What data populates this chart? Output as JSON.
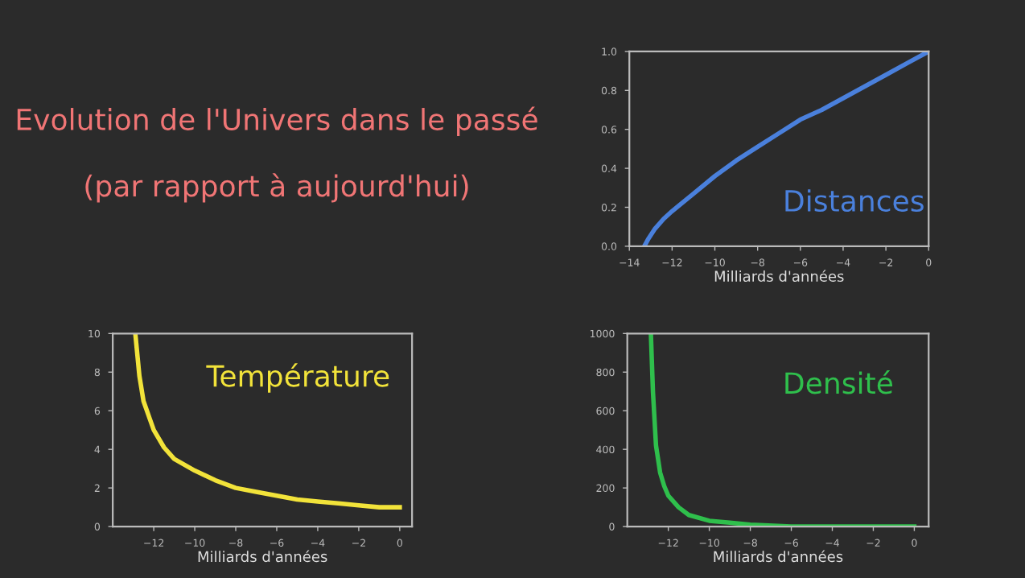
{
  "chart_data": [
    {
      "type": "other",
      "title": "Evolution de l'Univers dans le passé",
      "subtitle": "(par rapport à aujourd'hui)"
    },
    {
      "type": "line",
      "xlabel": "Milliards d'années",
      "annotations": [
        "Distances"
      ],
      "xlim": [
        -14,
        0
      ],
      "xticks": [
        {
          "value": -14,
          "label": "−14"
        },
        {
          "value": -12,
          "label": "−12"
        },
        {
          "value": -10,
          "label": "−10"
        },
        {
          "value": -8,
          "label": "−8"
        },
        {
          "value": -6,
          "label": "−6"
        },
        {
          "value": -4,
          "label": "−4"
        },
        {
          "value": -2,
          "label": "−2"
        },
        0
      ],
      "ylim": [
        0,
        1
      ],
      "yticks": [
        {
          "value": 0,
          "label": "0.0"
        },
        0.2,
        0.4,
        0.6,
        0.8,
        {
          "value": 1,
          "label": "1.0"
        }
      ],
      "grid": false,
      "series": [
        {
          "color": "#4a80dc",
          "x": [
            -13.3,
            -13.1,
            -12.8,
            -12.4,
            -12,
            -11,
            -10,
            -9,
            -8,
            -7,
            -6,
            -5,
            -4,
            -3,
            -2,
            -1,
            0
          ],
          "values": [
            0,
            0.04,
            0.09,
            0.14,
            0.18,
            0.27,
            0.36,
            0.44,
            0.51,
            0.58,
            0.65,
            0.7,
            0.76,
            0.82,
            0.88,
            0.94,
            1
          ]
        }
      ]
    },
    {
      "type": "line",
      "xlabel": "Milliards d'années",
      "annotations": [
        "Température"
      ],
      "xlim": [
        -14,
        0.6
      ],
      "xticks": [
        {
          "value": -12,
          "label": "−12"
        },
        {
          "value": -10,
          "label": "−10"
        },
        {
          "value": -8,
          "label": "−8"
        },
        {
          "value": -6,
          "label": "−6"
        },
        {
          "value": -4,
          "label": "−4"
        },
        {
          "value": -2,
          "label": "−2"
        },
        0
      ],
      "ylim": [
        0,
        10
      ],
      "yticks": [
        0,
        2,
        4,
        6,
        8,
        10
      ],
      "grid": false,
      "series": [
        {
          "color": "#f2e33a",
          "x": [
            -12.9,
            -12.7,
            -12.5,
            -12.2,
            -12,
            -11.5,
            -11,
            -10,
            -9,
            -8,
            -7,
            -6,
            -5,
            -4,
            -3,
            -2,
            -1,
            0
          ],
          "values": [
            10,
            7.8,
            6.5,
            5.6,
            5.0,
            4.1,
            3.5,
            2.9,
            2.4,
            2.0,
            1.8,
            1.6,
            1.4,
            1.3,
            1.2,
            1.1,
            1.0,
            1.0
          ]
        }
      ]
    },
    {
      "type": "line",
      "xlabel": "Milliards d'années",
      "annotations": [
        "Densité"
      ],
      "xlim": [
        -14,
        0.7
      ],
      "xticks": [
        {
          "value": -12,
          "label": "−12"
        },
        {
          "value": -10,
          "label": "−10"
        },
        {
          "value": -8,
          "label": "−8"
        },
        {
          "value": -6,
          "label": "−6"
        },
        {
          "value": -4,
          "label": "−4"
        },
        {
          "value": -2,
          "label": "−2"
        },
        0
      ],
      "ylim": [
        0,
        1000
      ],
      "yticks": [
        0,
        200,
        400,
        600,
        800,
        1000
      ],
      "grid": false,
      "series": [
        {
          "color": "#2fbf4c",
          "x": [
            -12.85,
            -12.75,
            -12.6,
            -12.4,
            -12.2,
            -12,
            -11.5,
            -11,
            -10,
            -9,
            -8,
            -6,
            -4,
            -2,
            0
          ],
          "values": [
            1000,
            700,
            420,
            280,
            210,
            160,
            100,
            60,
            30,
            20,
            10,
            0,
            0,
            0,
            0
          ]
        }
      ]
    }
  ]
}
